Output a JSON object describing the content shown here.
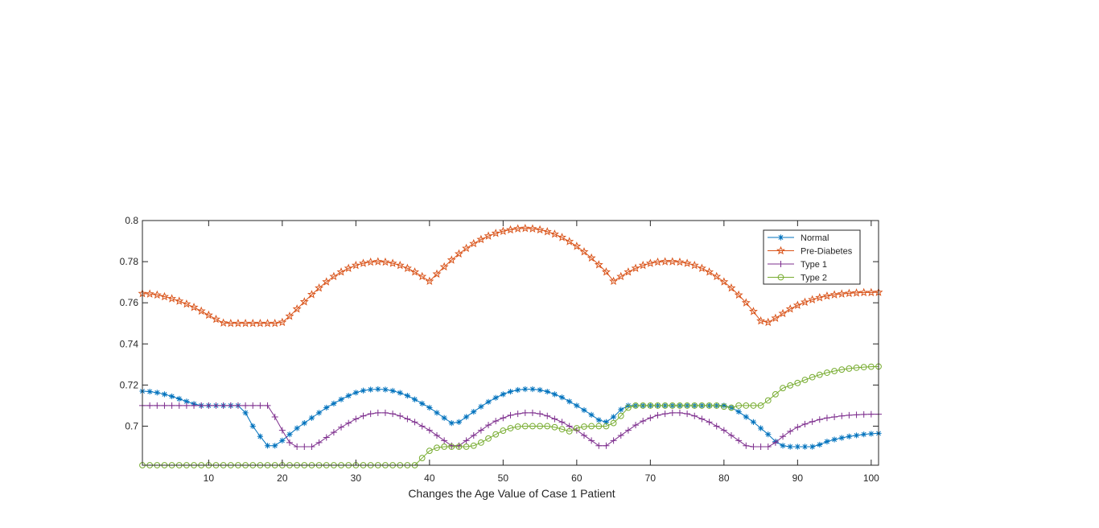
{
  "chart_data": {
    "type": "line",
    "title": "",
    "xlabel": "Changes the Age Value of Case 1 Patient",
    "ylabel": "",
    "xlim": [
      1,
      101
    ],
    "ylim": [
      0.681,
      0.8
    ],
    "x_ticks": [
      10,
      20,
      30,
      40,
      50,
      60,
      70,
      80,
      90,
      100
    ],
    "x_tick_labels": [
      "10",
      "20",
      "30",
      "40",
      "50",
      "60",
      "70",
      "80",
      "90",
      "100"
    ],
    "y_ticks": [
      0.7,
      0.72,
      0.74,
      0.76,
      0.78,
      0.8
    ],
    "y_tick_labels": [
      "0.7",
      "0.72",
      "0.74",
      "0.76",
      "0.78",
      "0.8"
    ],
    "grid": false,
    "legend": "top-right",
    "x": [
      1,
      2,
      3,
      4,
      5,
      6,
      7,
      8,
      9,
      10,
      11,
      12,
      13,
      14,
      15,
      16,
      17,
      18,
      19,
      20,
      21,
      22,
      23,
      24,
      25,
      26,
      27,
      28,
      29,
      30,
      31,
      32,
      33,
      34,
      35,
      36,
      37,
      38,
      39,
      40,
      41,
      42,
      43,
      44,
      45,
      46,
      47,
      48,
      49,
      50,
      51,
      52,
      53,
      54,
      55,
      56,
      57,
      58,
      59,
      60,
      61,
      62,
      63,
      64,
      65,
      66,
      67,
      68,
      69,
      70,
      71,
      72,
      73,
      74,
      75,
      76,
      77,
      78,
      79,
      80,
      81,
      82,
      83,
      84,
      85,
      86,
      87,
      88,
      89,
      90,
      91,
      92,
      93,
      94,
      95,
      96,
      97,
      98,
      99,
      100,
      101
    ],
    "series": [
      {
        "name": "Normal",
        "color": "#0072BD",
        "marker": "asterisk",
        "values": [
          0.717,
          0.7168,
          0.7163,
          0.7155,
          0.7145,
          0.7133,
          0.712,
          0.7108,
          0.71,
          0.71,
          0.71,
          0.71,
          0.71,
          0.71,
          0.7065,
          0.7,
          0.695,
          0.6905,
          0.6905,
          0.693,
          0.696,
          0.699,
          0.7015,
          0.704,
          0.7065,
          0.709,
          0.711,
          0.713,
          0.7148,
          0.7163,
          0.7173,
          0.7178,
          0.718,
          0.7178,
          0.7172,
          0.7162,
          0.7148,
          0.713,
          0.711,
          0.709,
          0.7065,
          0.704,
          0.7015,
          0.702,
          0.7045,
          0.707,
          0.7095,
          0.7118,
          0.7138,
          0.7155,
          0.7168,
          0.7176,
          0.718,
          0.718,
          0.7176,
          0.7168,
          0.7155,
          0.714,
          0.712,
          0.71,
          0.7078,
          0.7055,
          0.703,
          0.702,
          0.7045,
          0.708,
          0.71,
          0.71,
          0.71,
          0.71,
          0.71,
          0.71,
          0.71,
          0.71,
          0.71,
          0.71,
          0.71,
          0.71,
          0.71,
          0.71,
          0.709,
          0.707,
          0.7045,
          0.702,
          0.699,
          0.696,
          0.6925,
          0.6905,
          0.69,
          0.69,
          0.69,
          0.69,
          0.691,
          0.6925,
          0.6935,
          0.6943,
          0.695,
          0.6955,
          0.696,
          0.6963,
          0.6965
        ]
      },
      {
        "name": "Pre-Diabetes",
        "color": "#D95319",
        "marker": "pentagram",
        "values": [
          0.7645,
          0.7643,
          0.7638,
          0.763,
          0.762,
          0.7608,
          0.7594,
          0.7578,
          0.756,
          0.754,
          0.752,
          0.7502,
          0.75,
          0.75,
          0.75,
          0.75,
          0.75,
          0.75,
          0.75,
          0.7505,
          0.7535,
          0.757,
          0.7605,
          0.764,
          0.7672,
          0.7702,
          0.7728,
          0.775,
          0.7768,
          0.7782,
          0.7792,
          0.7798,
          0.78,
          0.7798,
          0.7792,
          0.7782,
          0.7768,
          0.775,
          0.7728,
          0.7705,
          0.774,
          0.7775,
          0.7808,
          0.7838,
          0.7865,
          0.7888,
          0.7908,
          0.7925,
          0.7938,
          0.7948,
          0.7955,
          0.796,
          0.7962,
          0.796,
          0.7955,
          0.7946,
          0.7934,
          0.7918,
          0.7898,
          0.7875,
          0.7848,
          0.7818,
          0.7785,
          0.775,
          0.7705,
          0.7728,
          0.775,
          0.7768,
          0.7782,
          0.7792,
          0.7798,
          0.78,
          0.78,
          0.7798,
          0.7792,
          0.7782,
          0.7768,
          0.775,
          0.7728,
          0.7702,
          0.7672,
          0.7638,
          0.76,
          0.7558,
          0.7512,
          0.7505,
          0.7525,
          0.7548,
          0.757,
          0.7588,
          0.7603,
          0.7615,
          0.7625,
          0.7633,
          0.7639,
          0.7643,
          0.7646,
          0.7648,
          0.765,
          0.765,
          0.7651
        ]
      },
      {
        "name": "Type 1",
        "color": "#7E2F8E",
        "marker": "plus",
        "values": [
          0.71,
          0.71,
          0.71,
          0.71,
          0.71,
          0.71,
          0.71,
          0.71,
          0.71,
          0.71,
          0.71,
          0.71,
          0.71,
          0.71,
          0.71,
          0.71,
          0.71,
          0.71,
          0.7045,
          0.698,
          0.692,
          0.69,
          0.69,
          0.69,
          0.692,
          0.6945,
          0.697,
          0.6995,
          0.7015,
          0.7035,
          0.705,
          0.706,
          0.7065,
          0.7065,
          0.706,
          0.705,
          0.7035,
          0.702,
          0.7,
          0.698,
          0.6955,
          0.693,
          0.6905,
          0.6905,
          0.693,
          0.6955,
          0.698,
          0.7005,
          0.7025,
          0.704,
          0.7053,
          0.706,
          0.7065,
          0.7065,
          0.706,
          0.705,
          0.7035,
          0.702,
          0.7,
          0.698,
          0.6955,
          0.693,
          0.6905,
          0.6905,
          0.693,
          0.6955,
          0.698,
          0.7005,
          0.7025,
          0.704,
          0.7053,
          0.706,
          0.7065,
          0.7065,
          0.706,
          0.705,
          0.7035,
          0.702,
          0.7,
          0.698,
          0.6955,
          0.693,
          0.6905,
          0.69,
          0.69,
          0.69,
          0.692,
          0.695,
          0.6975,
          0.6995,
          0.701,
          0.7022,
          0.7032,
          0.704,
          0.7045,
          0.705,
          0.7053,
          0.7055,
          0.7057,
          0.7058,
          0.7058
        ]
      },
      {
        "name": "Type 2",
        "color": "#77AC30",
        "marker": "circle",
        "values": [
          0.681,
          0.681,
          0.681,
          0.681,
          0.681,
          0.681,
          0.681,
          0.681,
          0.681,
          0.681,
          0.681,
          0.681,
          0.681,
          0.681,
          0.681,
          0.681,
          0.681,
          0.681,
          0.681,
          0.681,
          0.681,
          0.681,
          0.681,
          0.681,
          0.681,
          0.681,
          0.681,
          0.681,
          0.681,
          0.681,
          0.681,
          0.681,
          0.681,
          0.681,
          0.681,
          0.681,
          0.681,
          0.681,
          0.6845,
          0.688,
          0.6895,
          0.69,
          0.69,
          0.69,
          0.69,
          0.6905,
          0.692,
          0.694,
          0.696,
          0.6978,
          0.699,
          0.6998,
          0.7,
          0.7,
          0.7,
          0.7,
          0.6995,
          0.6985,
          0.6975,
          0.699,
          0.6998,
          0.7,
          0.7,
          0.7,
          0.7015,
          0.705,
          0.709,
          0.71,
          0.71,
          0.71,
          0.71,
          0.71,
          0.71,
          0.71,
          0.71,
          0.71,
          0.71,
          0.71,
          0.71,
          0.7095,
          0.709,
          0.71,
          0.71,
          0.71,
          0.71,
          0.7125,
          0.7155,
          0.7185,
          0.7198,
          0.721,
          0.7225,
          0.7238,
          0.725,
          0.726,
          0.7268,
          0.7275,
          0.728,
          0.7284,
          0.7287,
          0.7289,
          0.729
        ]
      }
    ]
  }
}
